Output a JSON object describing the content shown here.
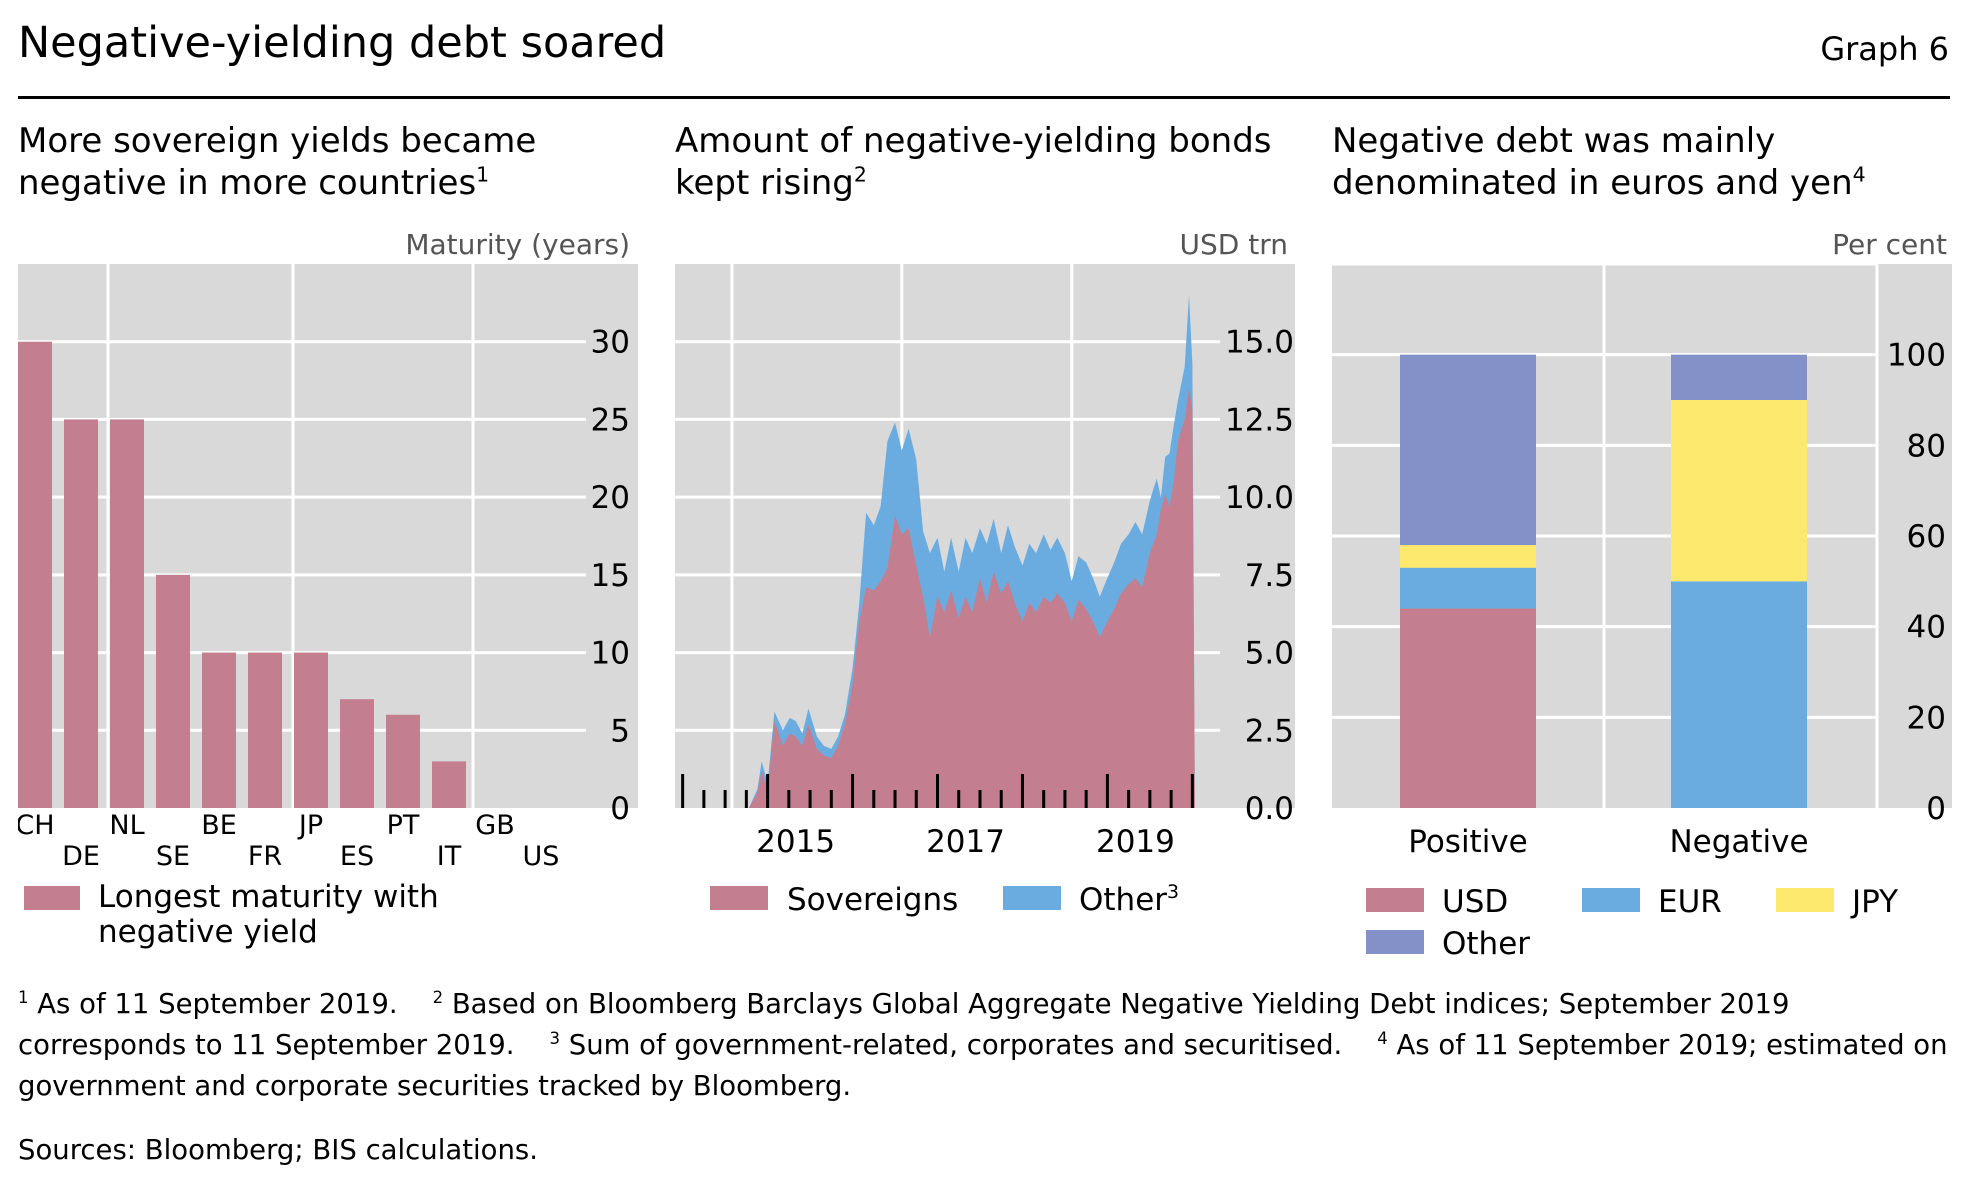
{
  "header": {
    "title": "Negative-yielding debt soared",
    "graph_label": "Graph 6"
  },
  "panels": [
    {
      "title_line1": "More sovereign yields became",
      "title_line2": "negative in more countries",
      "title_sup": "1",
      "unit": "Maturity (years)"
    },
    {
      "title_line1": "Amount of negative-yielding bonds",
      "title_line2": "kept rising",
      "title_sup": "2",
      "unit": "USD trn"
    },
    {
      "title_line1": "Negative debt was mainly",
      "title_line2": "denominated in euros and yen",
      "title_sup": "4",
      "unit": "Per cent"
    }
  ],
  "footnotes": {
    "n1_mark": "1",
    "n1_text": "As of 11 September 2019.",
    "n2_mark": "2",
    "n2_text": "Based on Bloomberg Barclays Global Aggregate Negative Yielding Debt indices; September 2019 corresponds to 11 September 2019.",
    "n3_mark": "3",
    "n3_text": "Sum of government-related, corporates and securitised.",
    "n4_mark": "4",
    "n4_text": "As of 11 September 2019; estimated on government and corporate securities tracked by Bloomberg."
  },
  "sources": "Sources: Bloomberg; BIS calculations.",
  "colors": {
    "plot_bg": "#d9d9d9",
    "grid": "#ffffff",
    "maturity_bar": "#c37f8f",
    "sovereigns": "#c37f8f",
    "other": "#6aace0",
    "usd": "#c37f8f",
    "eur": "#6aace0",
    "jpy": "#fde96e",
    "other_ccy": "#8491c8"
  },
  "chart_data": [
    {
      "type": "bar",
      "title": "More sovereign yields became negative in more countries",
      "ylabel": "Maturity (years)",
      "ylim": [
        0,
        35
      ],
      "yticks": [
        0,
        5,
        10,
        15,
        20,
        25,
        30
      ],
      "categories": [
        "CH",
        "DE",
        "NL",
        "SE",
        "BE",
        "FR",
        "JP",
        "ES",
        "PT",
        "IT",
        "GB",
        "US"
      ],
      "values": [
        30,
        25,
        25,
        15,
        10,
        10,
        10,
        7,
        6,
        3,
        0,
        0
      ],
      "legend": [
        "Longest maturity with",
        "negative yield"
      ]
    },
    {
      "type": "area",
      "title": "Amount of negative-yielding bonds kept rising",
      "ylabel": "USD trn",
      "ylim": [
        0,
        17.5
      ],
      "yticks": [
        "0.0",
        "2.5",
        "5.0",
        "7.5",
        "10.0",
        "12.5",
        "15.0"
      ],
      "xticks": [
        "2015",
        "2017",
        "2019"
      ],
      "x": [
        2014.0,
        2014.17,
        2014.3,
        2014.45,
        2014.55,
        2014.6,
        2014.67,
        2014.75,
        2014.85,
        2014.93,
        2015.0,
        2015.08,
        2015.15,
        2015.25,
        2015.33,
        2015.42,
        2015.5,
        2015.58,
        2015.67,
        2015.75,
        2015.83,
        2015.92,
        2016.0,
        2016.08,
        2016.17,
        2016.25,
        2016.33,
        2016.42,
        2016.5,
        2016.58,
        2016.67,
        2016.75,
        2016.83,
        2016.92,
        2017.0,
        2017.08,
        2017.17,
        2017.25,
        2017.33,
        2017.42,
        2017.5,
        2017.58,
        2017.67,
        2017.75,
        2017.83,
        2017.92,
        2018.0,
        2018.08,
        2018.17,
        2018.25,
        2018.33,
        2018.42,
        2018.5,
        2018.58,
        2018.67,
        2018.75,
        2018.83,
        2018.92,
        2019.0,
        2019.08,
        2019.17,
        2019.25,
        2019.3,
        2019.35,
        2019.4,
        2019.45,
        2019.5,
        2019.58,
        2019.63,
        2019.67,
        2019.7
      ],
      "series": [
        {
          "name": "Sovereigns",
          "values": [
            0,
            0,
            0,
            0,
            0.5,
            1.2,
            0.6,
            2.8,
            2.0,
            2.4,
            2.3,
            2.0,
            2.7,
            1.9,
            1.7,
            1.6,
            2.0,
            2.7,
            4.0,
            6.0,
            7.1,
            7.0,
            7.3,
            7.7,
            9.4,
            8.8,
            9.0,
            7.8,
            6.8,
            5.5,
            6.8,
            6.3,
            7.0,
            6.1,
            6.8,
            6.3,
            7.4,
            6.6,
            7.6,
            6.9,
            7.3,
            6.6,
            6.0,
            6.6,
            6.3,
            6.8,
            6.6,
            6.9,
            6.6,
            6.0,
            6.7,
            6.4,
            6.0,
            5.5,
            6.0,
            6.4,
            6.9,
            7.2,
            7.4,
            7.1,
            8.2,
            8.8,
            9.6,
            10.1,
            9.7,
            10.5,
            11.8,
            12.5,
            13.5,
            12.8,
            0
          ],
          "cumulative_total": [
            0,
            0,
            0,
            0,
            0.6,
            1.5,
            0.8,
            3.1,
            2.5,
            2.9,
            2.8,
            2.4,
            3.2,
            2.3,
            2.0,
            1.9,
            2.3,
            3.0,
            4.5,
            6.6,
            9.5,
            9.1,
            9.7,
            11.8,
            12.4,
            11.5,
            12.2,
            11.2,
            8.9,
            8.2,
            8.7,
            7.6,
            8.7,
            7.6,
            8.7,
            8.2,
            9.0,
            8.5,
            9.3,
            8.2,
            9.1,
            8.4,
            7.8,
            8.5,
            8.2,
            8.8,
            8.3,
            8.7,
            8.2,
            7.3,
            8.1,
            7.9,
            7.4,
            6.8,
            7.4,
            7.9,
            8.5,
            8.8,
            9.2,
            8.8,
            9.9,
            10.6,
            10.0,
            11.3,
            11.4,
            12.3,
            13.1,
            14.2,
            16.5,
            14.3,
            0
          ]
        },
        {
          "name": "Other",
          "note_sup": "3"
        }
      ]
    },
    {
      "type": "bar",
      "stacked": true,
      "title": "Negative debt was mainly denominated in euros and yen",
      "ylabel": "Per cent",
      "ylim": [
        0,
        120
      ],
      "yticks": [
        0,
        20,
        40,
        60,
        80,
        100
      ],
      "categories": [
        "Positive",
        "Negative"
      ],
      "series": [
        {
          "name": "USD",
          "values": [
            44,
            0
          ]
        },
        {
          "name": "EUR",
          "values": [
            9,
            50
          ]
        },
        {
          "name": "JPY",
          "values": [
            5,
            40
          ]
        },
        {
          "name": "Other",
          "values": [
            42,
            10
          ]
        }
      ]
    }
  ]
}
